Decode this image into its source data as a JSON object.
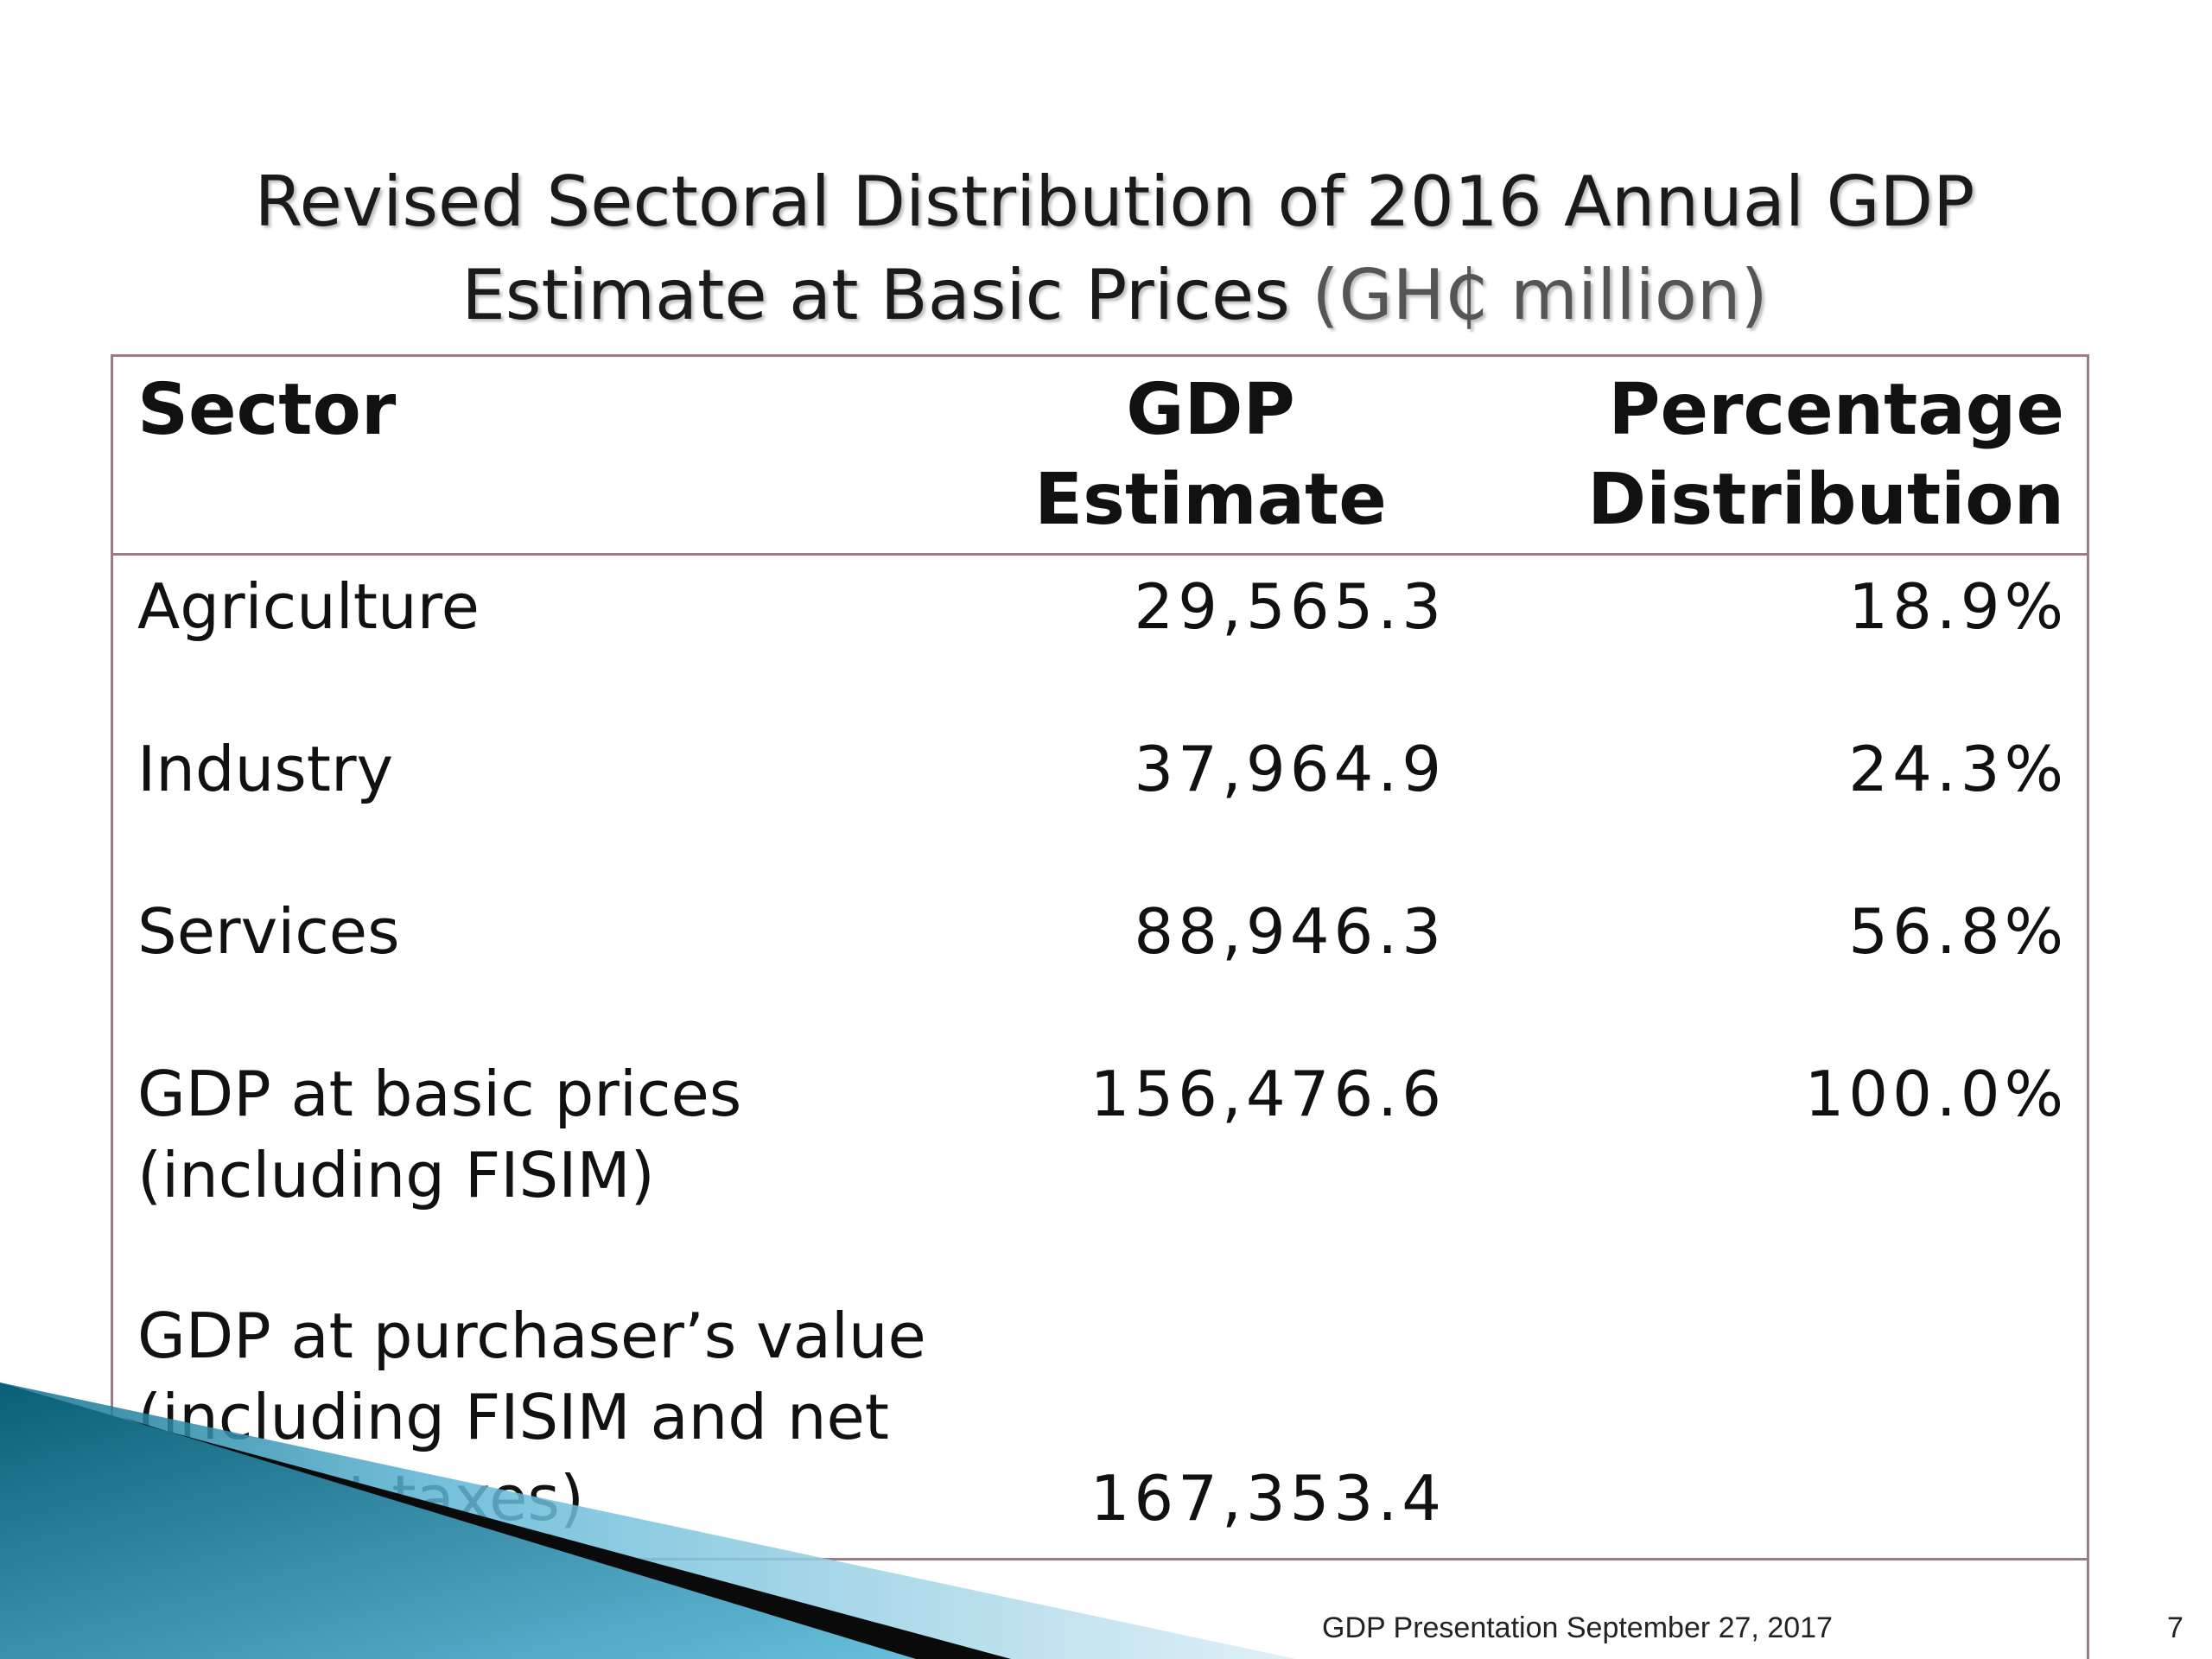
{
  "slide": {
    "title_main": "Revised Sectoral Distribution of 2016 Annual GDP Estimate at Basic Prices",
    "title_unit": "(GH₵ million)",
    "footer": "GDP Presentation September 27, 2017",
    "page_number": "7"
  },
  "table": {
    "headers": {
      "sector_line1": "Sector",
      "gdp_line1": "GDP",
      "gdp_line2": "Estimate",
      "pct_line1": "Percentage",
      "pct_line2": "Distribution"
    },
    "rows": [
      {
        "sector": "Agriculture",
        "gdp": "29,565.3",
        "pct": "18.9%"
      },
      {
        "sector": "Industry",
        "gdp": "37,964.9",
        "pct": "24.3%"
      },
      {
        "sector": "Services",
        "gdp": "88,946.3",
        "pct": "56.8%"
      },
      {
        "sector_line1": "GDP at basic prices",
        "sector_line2": "(including FISIM)",
        "gdp": "156,476.6",
        "pct": "100.0%"
      },
      {
        "sector_line1": "GDP at purchaser’s value",
        "sector_line2": "(including FISIM and net",
        "sector_line3": "indirect taxes)",
        "gdp": "167,353.4",
        "pct": ""
      }
    ]
  },
  "colors": {
    "border": "#9c7c88",
    "deco_dark": "#0b6f8a",
    "deco_light": "#5fb7d6"
  }
}
